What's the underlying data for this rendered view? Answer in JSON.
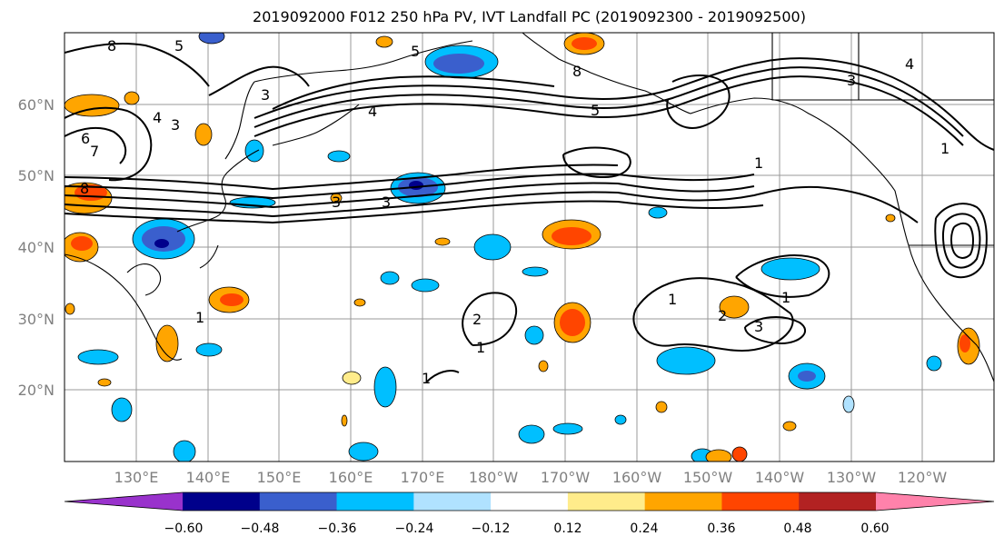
{
  "title": "2019092000 F012 250 hPa PV, IVT Landfall PC (2019092300 - 2019092500)",
  "lat_labels": [
    "60°N",
    "50°N",
    "40°N",
    "30°N",
    "20°N"
  ],
  "lon_labels": [
    "130°E",
    "140°E",
    "150°E",
    "160°E",
    "170°E",
    "180°W",
    "170°W",
    "160°W",
    "150°W",
    "140°W",
    "130°W",
    "120°W"
  ],
  "colorbar": {
    "ticks": [
      "−0.60",
      "−0.48",
      "−0.36",
      "−0.24",
      "−0.12",
      "0.12",
      "0.24",
      "0.36",
      "0.48",
      "0.60"
    ],
    "colors": [
      "#9932cc",
      "#00008b",
      "#3a5fcd",
      "#00bfff",
      "#b0e2ff",
      "#ffffff",
      "#ffec8b",
      "#ffa500",
      "#ff4500",
      "#b22222",
      "#ff82ab"
    ]
  },
  "contour_labels": [
    "8",
    "5",
    "3",
    "6",
    "7",
    "8",
    "4",
    "3",
    "4",
    "5",
    "1",
    "3",
    "3",
    "1",
    "1",
    "1",
    "2",
    "3",
    "1",
    "8",
    "1",
    "5",
    "4",
    "3",
    "2",
    "1"
  ]
}
